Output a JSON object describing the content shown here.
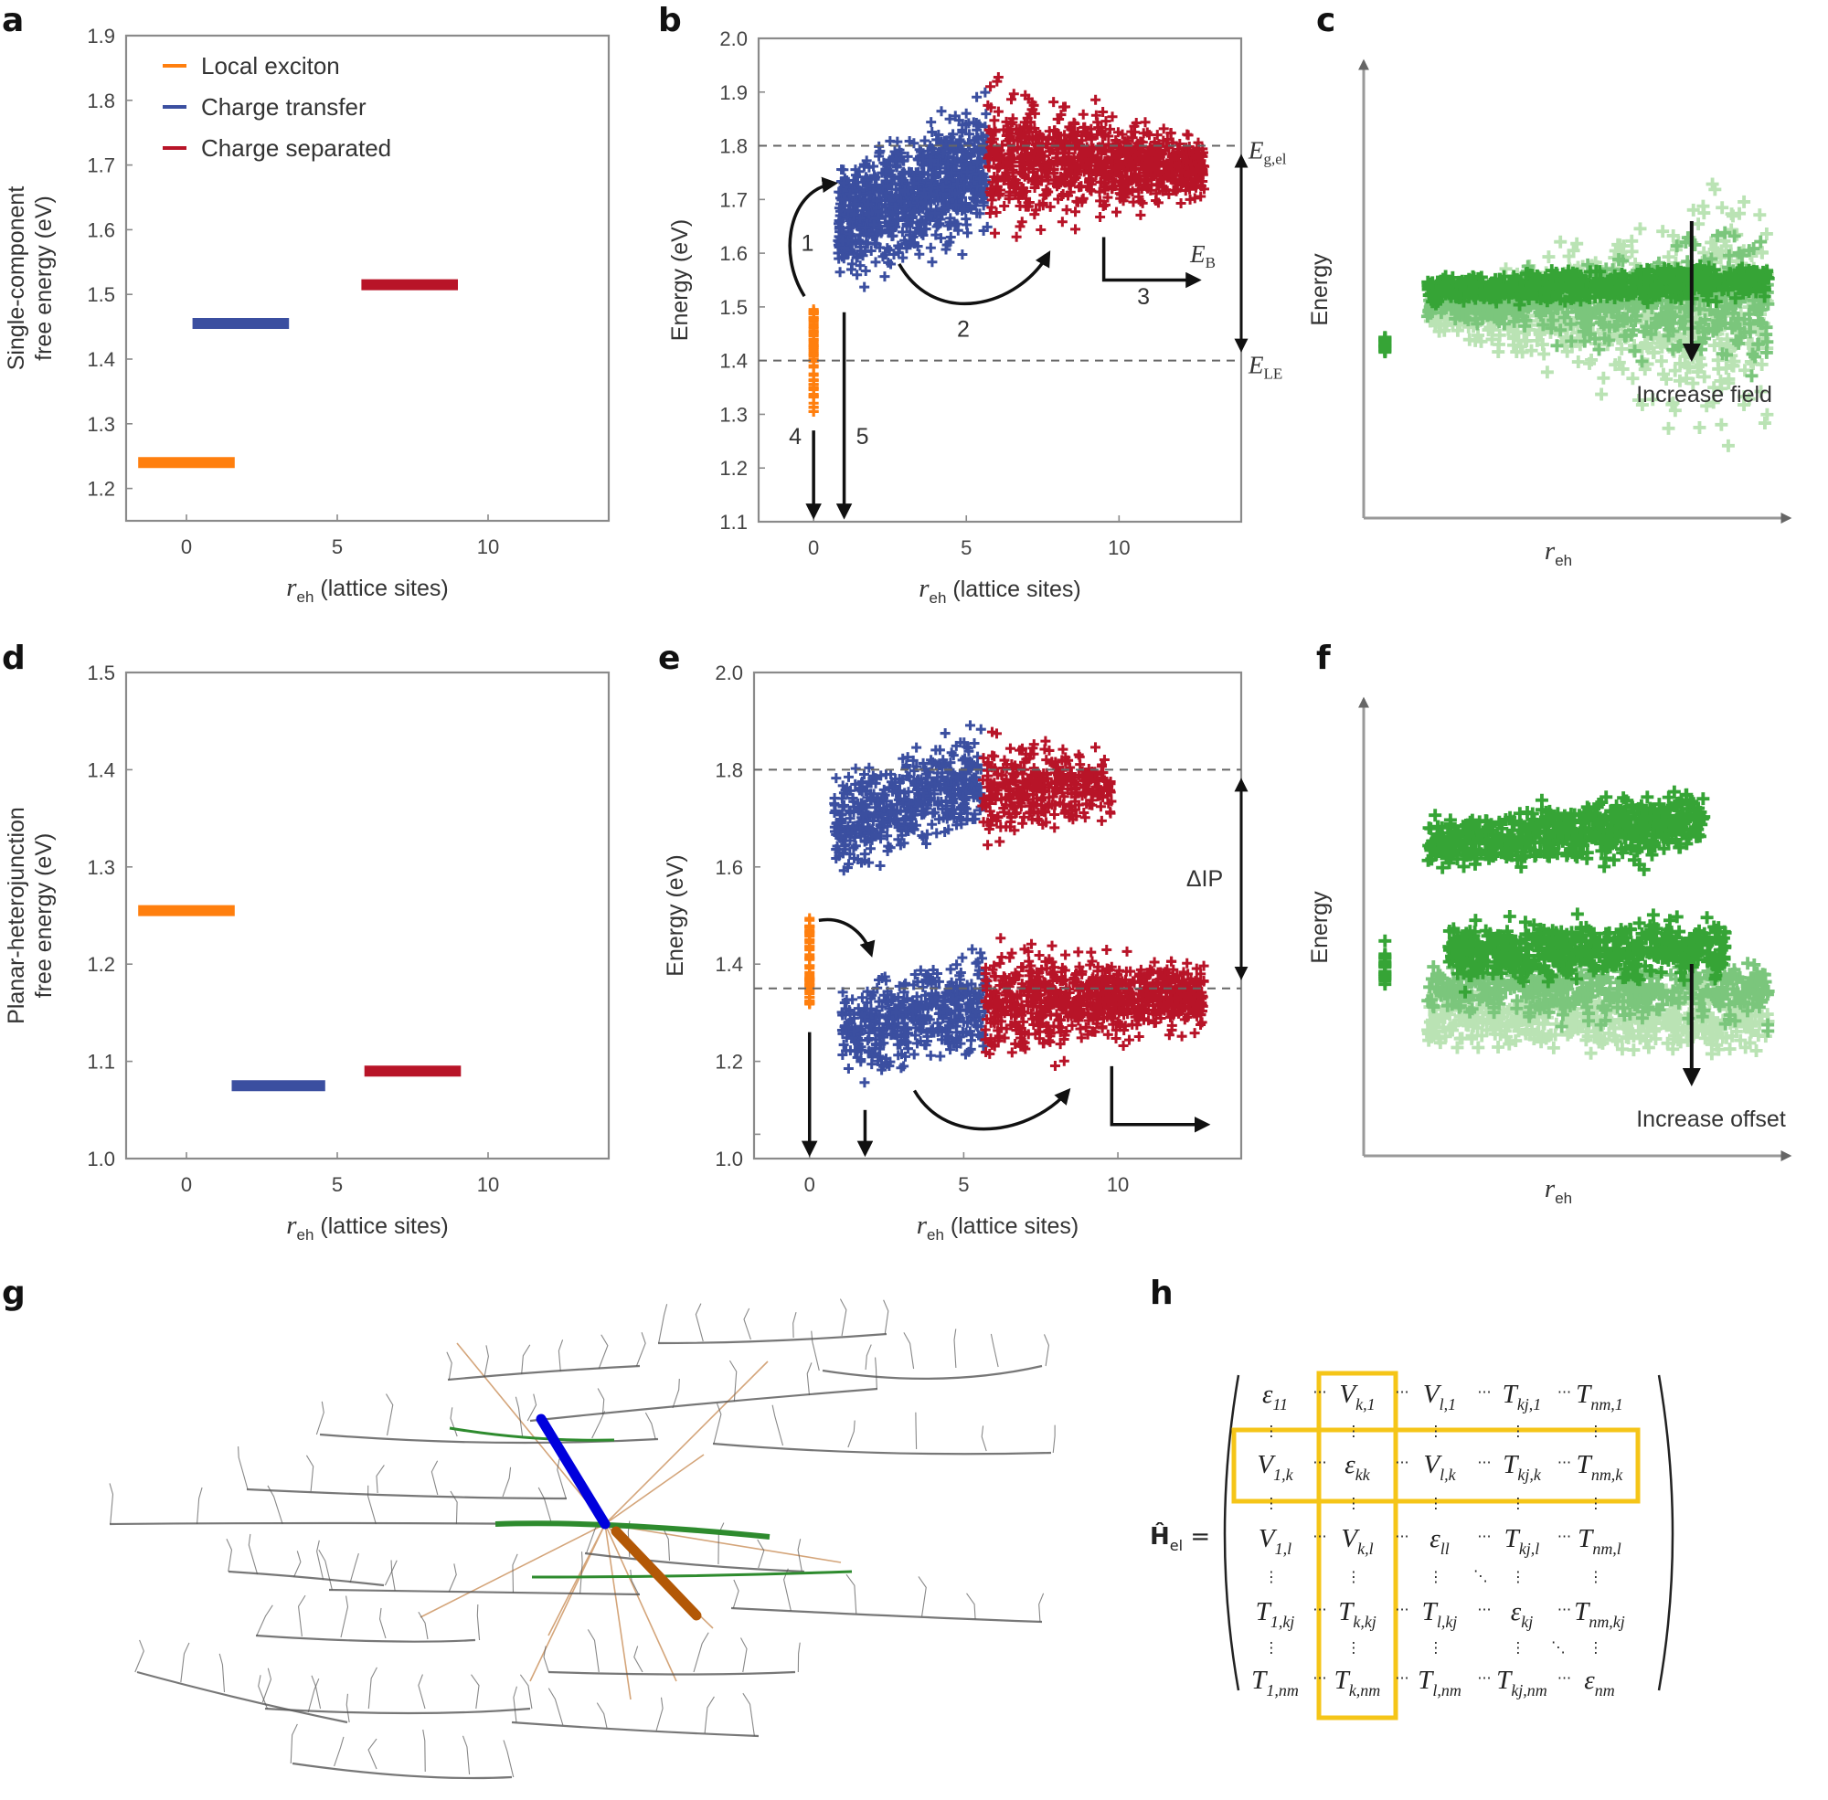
{
  "panel_letters": [
    "a",
    "b",
    "c",
    "d",
    "e",
    "f",
    "g",
    "h"
  ],
  "colors": {
    "local_exciton": "#ff7f0e",
    "charge_transfer": "#3b4fa0",
    "charge_separated": "#b81428",
    "green_dark": "#2ca02c",
    "green_mid": "#74c476",
    "green_light": "#b7e2b1",
    "highlight": "#f5c518",
    "axis": "#888888",
    "arrow": "#111111"
  },
  "chart_data": [
    {
      "id": "a",
      "type": "line",
      "title": "",
      "xlabel": "r_eh (lattice sites)",
      "xlabel_main": "r",
      "xlabel_sub": "eh",
      "xlabel_rest": " (lattice sites)",
      "ylabel_lines": [
        "Single-component",
        "free energy (eV)"
      ],
      "xlim": [
        -2,
        14
      ],
      "ylim": [
        1.15,
        1.9
      ],
      "xticks": [
        0,
        5,
        10
      ],
      "xtick_labels": [
        "0",
        "5",
        "10"
      ],
      "yticks": [
        1.2,
        1.3,
        1.4,
        1.5,
        1.6,
        1.7,
        1.8,
        1.9
      ],
      "ytick_labels": [
        "1.2",
        "1.3",
        "1.4",
        "1.5",
        "1.6",
        "1.7",
        "1.8",
        "1.9"
      ],
      "legend": {
        "placement": "top-left",
        "entries": [
          {
            "label": "Local exciton",
            "color_key": "local_exciton"
          },
          {
            "label": "Charge transfer",
            "color_key": "charge_transfer"
          },
          {
            "label": "Charge separated",
            "color_key": "charge_separated"
          }
        ]
      },
      "series": [
        {
          "name": "Local exciton",
          "color_key": "local_exciton",
          "x": [
            -1.6,
            1.6
          ],
          "y": 1.24
        },
        {
          "name": "Charge transfer",
          "color_key": "charge_transfer",
          "x": [
            0.2,
            3.4
          ],
          "y": 1.455
        },
        {
          "name": "Charge separated",
          "color_key": "charge_separated",
          "x": [
            5.8,
            9.0
          ],
          "y": 1.515
        }
      ]
    },
    {
      "id": "b",
      "type": "scatter",
      "xlabel_main": "r",
      "xlabel_sub": "eh",
      "xlabel_rest": " (lattice sites)",
      "ylabel": "Energy (eV)",
      "xlim": [
        -1.8,
        14
      ],
      "ylim": [
        1.1,
        2.0
      ],
      "xticks": [
        0,
        5,
        10
      ],
      "xtick_labels": [
        "0",
        "5",
        "10"
      ],
      "yticks": [
        1.1,
        1.2,
        1.3,
        1.4,
        1.5,
        1.6,
        1.7,
        1.8,
        1.9,
        2.0
      ],
      "ytick_labels": [
        "1.1",
        "1.2",
        "1.3",
        "1.4",
        "1.5",
        "1.6",
        "1.7",
        "1.8",
        "1.9",
        "2.0"
      ],
      "hlines": [
        {
          "y": 1.8,
          "label_main": "E",
          "label_sub": "g,el"
        },
        {
          "y": 1.4,
          "label_main": "E",
          "label_sub": "LE"
        }
      ],
      "double_arrow": {
        "y_from": 1.8,
        "y_to": 1.4,
        "label_main": "E",
        "label_sub": "B"
      },
      "process_labels": [
        "1",
        "2",
        "3",
        "4",
        "5"
      ],
      "clouds": [
        {
          "name": "Local exciton",
          "color_key": "local_exciton",
          "x": [
            0,
            0
          ],
          "y": [
            1.3,
            1.5
          ],
          "n": 60,
          "seed": 3
        },
        {
          "name": "Charge transfer",
          "color_key": "charge_transfer",
          "x": [
            0.8,
            5.7
          ],
          "y_low": [
            1.52,
            1.6
          ],
          "y_high": [
            1.8,
            1.93
          ],
          "n": 900,
          "seed": 7
        },
        {
          "name": "Charge separated",
          "color_key": "charge_separated",
          "x": [
            5.7,
            12.8
          ],
          "y_low": [
            1.6,
            1.68
          ],
          "y_high": [
            1.95,
            1.84
          ],
          "n": 900,
          "seed": 11
        }
      ]
    },
    {
      "id": "c",
      "type": "scatter",
      "xlabel_main": "r",
      "xlabel_sub": "eh",
      "xlabel_rest": "",
      "ylabel": "Energy",
      "annotation": "Increase field",
      "axes": "arrows-no-ticks",
      "clouds": [
        {
          "name": "high field",
          "color_key": "green_light",
          "x": [
            0.15,
            0.95
          ],
          "spread": [
            0.04,
            0.4
          ],
          "center": 0.45,
          "slope": 0.0,
          "n": 700,
          "seed": 21
        },
        {
          "name": "medium field",
          "color_key": "green_mid",
          "x": [
            0.15,
            0.95
          ],
          "spread": [
            0.04,
            0.22
          ],
          "center": 0.47,
          "slope": 0.0,
          "n": 600,
          "seed": 23
        },
        {
          "name": "zero field",
          "color_key": "green_dark",
          "x": [
            0.15,
            0.95
          ],
          "spread": [
            0.04,
            0.05
          ],
          "center": 0.5,
          "slope": 0.02,
          "n": 700,
          "seed": 25
        },
        {
          "name": "local exciton",
          "color_key": "green_dark",
          "x": [
            0.05,
            0.05
          ],
          "spread": [
            0.035,
            0.035
          ],
          "center": 0.38,
          "slope": 0.0,
          "n": 25,
          "seed": 27
        }
      ]
    },
    {
      "id": "d",
      "type": "line",
      "xlabel_main": "r",
      "xlabel_sub": "eh",
      "xlabel_rest": " (lattice sites)",
      "ylabel_lines": [
        "Planar-heterojunction",
        "free energy (eV)"
      ],
      "xlim": [
        -2,
        14
      ],
      "ylim": [
        1.0,
        1.5
      ],
      "xticks": [
        0,
        5,
        10
      ],
      "xtick_labels": [
        "0",
        "5",
        "10"
      ],
      "yticks": [
        1.0,
        1.1,
        1.2,
        1.3,
        1.4,
        1.5
      ],
      "ytick_labels": [
        "1.0",
        "1.1",
        "1.2",
        "1.3",
        "1.4",
        "1.5"
      ],
      "series": [
        {
          "name": "Local exciton",
          "color_key": "local_exciton",
          "x": [
            -1.6,
            1.6
          ],
          "y": 1.255
        },
        {
          "name": "Charge transfer",
          "color_key": "charge_transfer",
          "x": [
            1.5,
            4.6
          ],
          "y": 1.075
        },
        {
          "name": "Charge separated",
          "color_key": "charge_separated",
          "x": [
            5.9,
            9.1
          ],
          "y": 1.09
        }
      ]
    },
    {
      "id": "e",
      "type": "scatter",
      "xlabel_main": "r",
      "xlabel_sub": "eh",
      "xlabel_rest": " (lattice sites)",
      "ylabel": "Energy (eV)",
      "xlim": [
        -1.8,
        14
      ],
      "ylim": [
        1.0,
        2.0
      ],
      "xticks": [
        0,
        5,
        10
      ],
      "xtick_labels": [
        "0",
        "5",
        "10"
      ],
      "yticks": [
        1.0,
        1.2,
        1.4,
        1.6,
        1.8,
        2.0
      ],
      "ytick_labels": [
        "1.0",
        "1.2",
        "1.4",
        "1.6",
        "1.8",
        "2.0"
      ],
      "minor_yticks": [
        1.05
      ],
      "hlines": [
        {
          "y": 1.8
        },
        {
          "y": 1.35
        }
      ],
      "double_arrow": {
        "y_from": 1.8,
        "y_to": 1.35,
        "label": "ΔIP"
      },
      "clouds": [
        {
          "name": "Local exciton",
          "color_key": "local_exciton",
          "x": [
            0,
            0
          ],
          "y": [
            1.31,
            1.5
          ],
          "n": 50,
          "seed": 31
        },
        {
          "name": "Charge transfer (upper)",
          "color_key": "charge_transfer",
          "x": [
            0.8,
            5.6
          ],
          "y_low": [
            1.55,
            1.65
          ],
          "y_high": [
            1.82,
            1.92
          ],
          "n": 500,
          "seed": 33
        },
        {
          "name": "Charge separated (upper)",
          "color_key": "charge_separated",
          "x": [
            5.6,
            9.8
          ],
          "y_low": [
            1.6,
            1.68
          ],
          "y_high": [
            1.92,
            1.85
          ],
          "n": 350,
          "seed": 35
        },
        {
          "name": "Charge transfer (lower)",
          "color_key": "charge_transfer",
          "x": [
            1.0,
            5.7
          ],
          "y_low": [
            1.14,
            1.16
          ],
          "y_high": [
            1.38,
            1.47
          ],
          "n": 450,
          "seed": 37
        },
        {
          "name": "Charge separated (lower)",
          "color_key": "charge_separated",
          "x": [
            5.7,
            12.8
          ],
          "y_low": [
            1.15,
            1.25
          ],
          "y_high": [
            1.48,
            1.42
          ],
          "n": 800,
          "seed": 39
        }
      ]
    },
    {
      "id": "f",
      "type": "scatter",
      "xlabel_main": "r",
      "xlabel_sub": "eh",
      "xlabel_rest": "",
      "ylabel": "Energy",
      "annotation": "Increase offset",
      "axes": "arrows-no-ticks",
      "clouds": [
        {
          "name": "upper band",
          "color_key": "green_dark",
          "x": [
            0.15,
            0.8
          ],
          "spread": [
            0.08,
            0.1
          ],
          "center": 0.68,
          "slope": 0.05,
          "n": 600,
          "seed": 41
        },
        {
          "name": "lower band light",
          "color_key": "green_light",
          "x": [
            0.15,
            0.95
          ],
          "spread": [
            0.09,
            0.1
          ],
          "center": 0.3,
          "slope": 0.0,
          "n": 450,
          "seed": 43
        },
        {
          "name": "lower band mid",
          "color_key": "green_mid",
          "x": [
            0.15,
            0.95
          ],
          "spread": [
            0.09,
            0.1
          ],
          "center": 0.36,
          "slope": 0.0,
          "n": 450,
          "seed": 45
        },
        {
          "name": "lower band dark",
          "color_key": "green_dark",
          "x": [
            0.2,
            0.85
          ],
          "spread": [
            0.09,
            0.1
          ],
          "center": 0.45,
          "slope": 0.0,
          "n": 550,
          "seed": 47
        },
        {
          "name": "local exciton",
          "color_key": "green_dark",
          "x": [
            0.05,
            0.05
          ],
          "spread": [
            0.06,
            0.06
          ],
          "center": 0.42,
          "slope": 0.0,
          "n": 25,
          "seed": 49
        }
      ]
    }
  ],
  "panel_g": {
    "description": "molecular packing rendering with coupling lines",
    "highlight_colors": {
      "donor": "#0000dd",
      "acceptor": "#b35806",
      "coupling": "#d4a57a",
      "molecule": "#555555",
      "central": "#2e8b2e"
    }
  },
  "panel_h": {
    "lhs_main": "Ĥ",
    "lhs_sub": "el",
    "equals": "=",
    "rows": [
      [
        {
          "m": "ε",
          "s": "11",
          "c": "k"
        },
        {
          "m": "V",
          "s": "k,1",
          "c": "k"
        },
        {
          "m": "V",
          "s": "l,1",
          "c": "k"
        },
        {
          "m": "T",
          "s": "kj,1",
          "c": "k"
        },
        {
          "m": "T",
          "s": "nm,1",
          "c": "k"
        }
      ],
      [
        {
          "m": "V",
          "s": "1,k",
          "c": "k"
        },
        {
          "m": "ε",
          "s": "kk",
          "c": "g"
        },
        {
          "m": "V",
          "s": "l,k",
          "c": "r"
        },
        {
          "m": "T",
          "s": "kj,k",
          "c": "b"
        },
        {
          "m": "T",
          "s": "nm,k",
          "c": "k"
        }
      ],
      [
        {
          "m": "V",
          "s": "1,l",
          "c": "k"
        },
        {
          "m": "V",
          "s": "k,l",
          "c": "r"
        },
        {
          "m": "ε",
          "s": "ll",
          "c": "g"
        },
        {
          "m": "T",
          "s": "kj,l",
          "c": "k"
        },
        {
          "m": "T",
          "s": "nm,l",
          "c": "k"
        }
      ],
      [
        {
          "m": "T",
          "s": "1,kj",
          "c": "k"
        },
        {
          "m": "T",
          "s": "k,kj",
          "c": "b"
        },
        {
          "m": "T",
          "s": "l,kj",
          "c": "k"
        },
        {
          "m": "ε",
          "s": "kj",
          "c": "g"
        },
        {
          "m": "T",
          "s": "nm,kj",
          "c": "k"
        }
      ],
      [
        {
          "m": "T",
          "s": "1,nm",
          "c": "k"
        },
        {
          "m": "T",
          "s": "k,nm",
          "c": "k"
        },
        {
          "m": "T",
          "s": "l,nm",
          "c": "k"
        },
        {
          "m": "T",
          "s": "kj,nm",
          "c": "k"
        },
        {
          "m": "ε",
          "s": "nm",
          "c": "k"
        }
      ]
    ],
    "term_colors": {
      "k": "#222222",
      "g": "#2e8b2e",
      "r": "#e8552a",
      "b": "#6a7fd0"
    },
    "highlighted_row": 1,
    "highlighted_col": 1
  }
}
